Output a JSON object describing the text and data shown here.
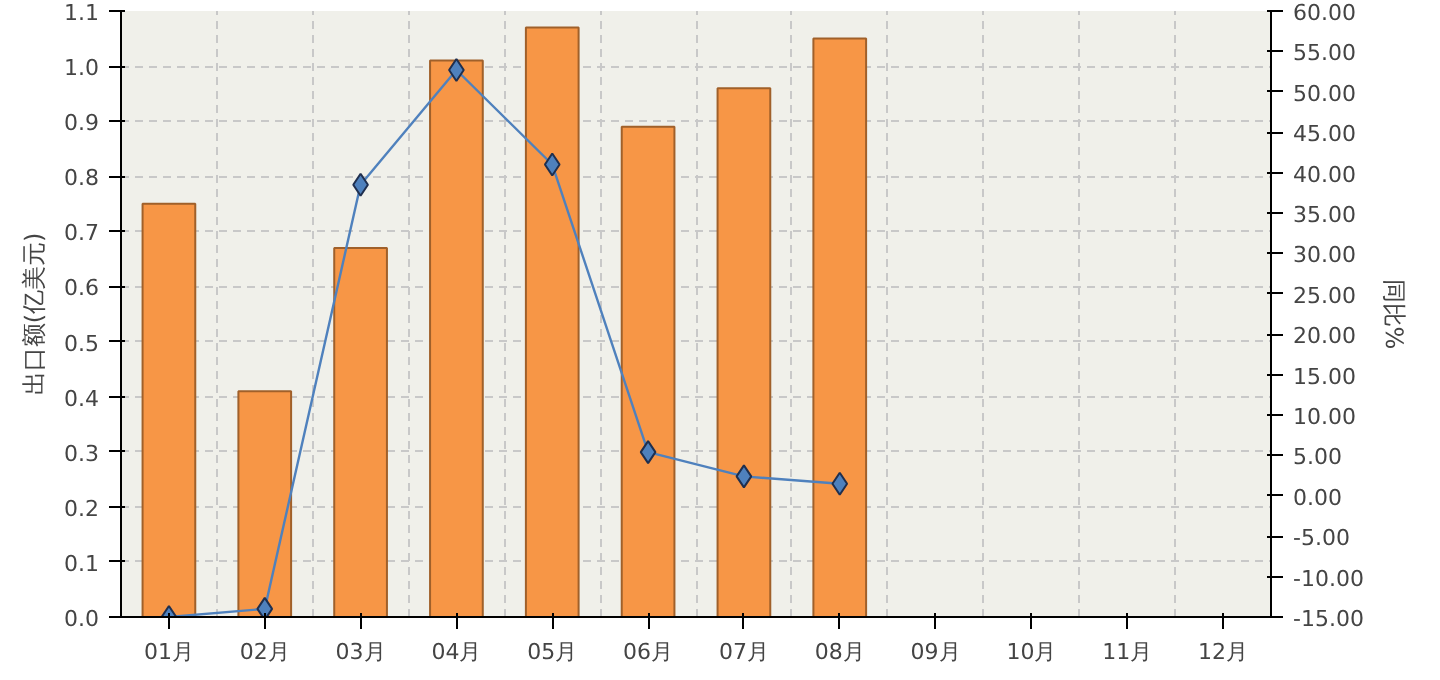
{
  "chart_data": {
    "type": "bar",
    "ylabel": "出口额(亿美元)",
    "y2label": "同比%",
    "categories": [
      "01月",
      "02月",
      "03月",
      "04月",
      "05月",
      "06月",
      "07月",
      "08月",
      "09月",
      "10月",
      "11月",
      "12月"
    ],
    "series": [
      {
        "color": "#f79646",
        "values": [
          0.75,
          0.41,
          0.67,
          1.01,
          1.07,
          0.89,
          0.96,
          1.05,
          null,
          null,
          null,
          null
        ]
      },
      {
        "type": "line",
        "axis": "y2",
        "color": "#4f81bd",
        "marker": "diamond",
        "values": [
          -15,
          -14,
          38.5,
          52.7,
          41,
          5.4,
          2.4,
          1.5,
          null,
          null,
          null,
          null
        ]
      }
    ],
    "ylim": [
      0,
      1.1
    ],
    "yticks": [
      {
        "value": 0,
        "label": "0.0"
      },
      0.1,
      0.2,
      0.3,
      0.4,
      0.5,
      0.6,
      0.7,
      0.8,
      0.9,
      {
        "value": 1,
        "label": "1.0"
      },
      1.1
    ],
    "y2lim": [
      -15,
      60
    ],
    "y2ticks": [
      {
        "value": -15,
        "label": "-15.00"
      },
      {
        "value": -10,
        "label": "-10.00"
      },
      {
        "value": -5,
        "label": "-5.00"
      },
      {
        "value": 0,
        "label": "0.00"
      },
      {
        "value": 5,
        "label": "5.00"
      },
      {
        "value": 10,
        "label": "10.00"
      },
      {
        "value": 15,
        "label": "15.00"
      },
      {
        "value": 20,
        "label": "20.00"
      },
      {
        "value": 25,
        "label": "25.00"
      },
      {
        "value": 30,
        "label": "30.00"
      },
      {
        "value": 35,
        "label": "35.00"
      },
      {
        "value": 40,
        "label": "40.00"
      },
      {
        "value": 45,
        "label": "45.00"
      },
      {
        "value": 50,
        "label": "50.00"
      },
      {
        "value": 55,
        "label": "55.00"
      },
      {
        "value": 60,
        "label": "60.00"
      }
    ],
    "grid": true
  }
}
